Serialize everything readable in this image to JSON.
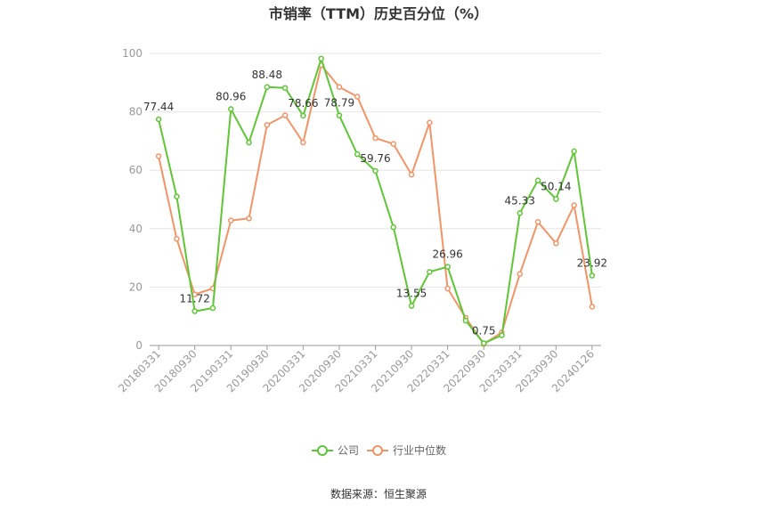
{
  "chart_data": {
    "type": "line",
    "title": "市销率（TTM）历史百分位（%）",
    "source": "数据来源：恒生聚源",
    "ylim": [
      0,
      100
    ],
    "yticks": [
      0,
      20,
      40,
      60,
      80,
      100
    ],
    "grid": true,
    "legend_position": "bottom",
    "x": [
      "20180331",
      "20180630",
      "20180930",
      "20181231",
      "20190331",
      "20190630",
      "20190930",
      "20191231",
      "20200331",
      "20200630",
      "20200930",
      "20201231",
      "20210331",
      "20210630",
      "20210930",
      "20211231",
      "20220331",
      "20220630",
      "20220930",
      "20221231",
      "20230331",
      "20230630",
      "20230930",
      "20231231",
      "20240126"
    ],
    "xtick_labels": [
      "20180331",
      "20180930",
      "20190331",
      "20190930",
      "20200331",
      "20200930",
      "20210331",
      "20210930",
      "20220331",
      "20220930",
      "20230331",
      "20230930",
      "20240126"
    ],
    "series": [
      {
        "name": "公司",
        "color": "#5fc636",
        "values": [
          77.44,
          51.0,
          11.72,
          12.8,
          80.96,
          69.5,
          88.48,
          88.2,
          78.66,
          98.2,
          78.79,
          65.5,
          59.76,
          40.5,
          13.55,
          25.2,
          26.96,
          8.5,
          0.75,
          3.5,
          45.33,
          56.5,
          50.14,
          66.5,
          23.92
        ],
        "labels": [
          "77.44",
          "",
          "11.72",
          "",
          "80.96",
          "",
          "88.48",
          "",
          "78.66",
          "",
          "78.79",
          "",
          "59.76",
          "",
          "13.55",
          "",
          "26.96",
          "",
          "0.75",
          "",
          "45.33",
          "",
          "50.14",
          "",
          "23.92"
        ]
      },
      {
        "name": "行业中位数",
        "color": "#f39467",
        "values": [
          64.8,
          36.5,
          17.5,
          19.5,
          42.8,
          43.5,
          75.5,
          78.8,
          69.5,
          96.0,
          88.5,
          85.2,
          71.0,
          69.0,
          58.5,
          76.3,
          19.5,
          9.5,
          0.5,
          4.5,
          24.5,
          42.3,
          35.0,
          48.0,
          13.3
        ],
        "labels": []
      }
    ]
  }
}
